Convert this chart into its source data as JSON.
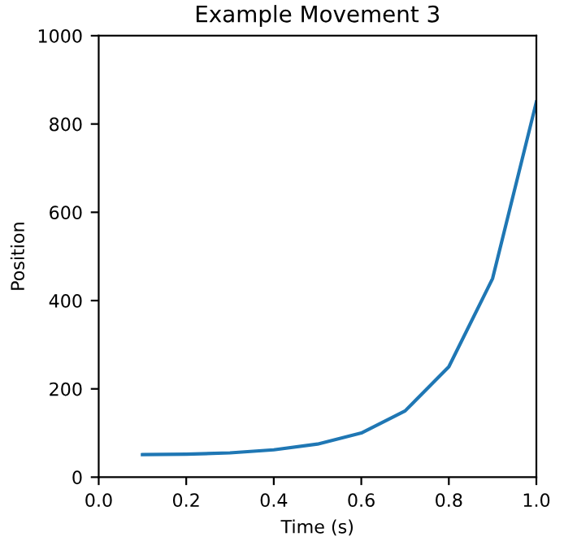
{
  "chart_data": {
    "type": "line",
    "title": "Example Movement 3",
    "xlabel": "Time (s)",
    "ylabel": "Position",
    "x": [
      0.1,
      0.2,
      0.3,
      0.4,
      0.5,
      0.6,
      0.7,
      0.8,
      0.9,
      1.0
    ],
    "series": [
      {
        "color": "#1f77b4",
        "values": [
          51,
          52,
          55,
          62,
          75,
          100,
          150,
          250,
          450,
          850
        ]
      }
    ],
    "xlim": [
      0.0,
      1.0
    ],
    "xticks": [
      {
        "value": 0,
        "label": "0.0"
      },
      0.2,
      0.4,
      0.6,
      0.8,
      {
        "value": 1,
        "label": "1.0"
      }
    ],
    "ylim": [
      0,
      1000
    ],
    "yticks": [
      0,
      200,
      400,
      600,
      800,
      1000
    ],
    "grid": false,
    "legend": false
  }
}
